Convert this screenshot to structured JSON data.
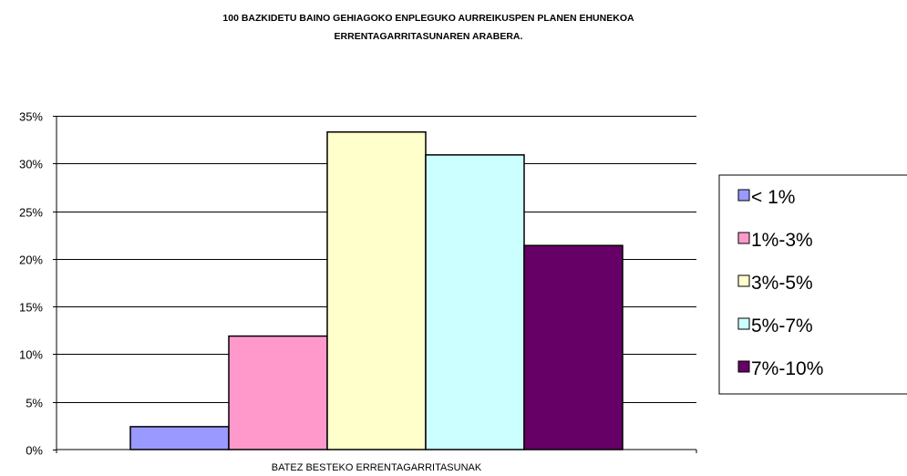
{
  "chart_data": {
    "type": "bar",
    "title": [
      "100 BAZKIDETU BAINO GEHIAGOKO ENPLEGUKO AURREIKUSPEN PLANEN EHUNEKOA",
      "ERRENTAGARRITASUNAREN ARABERA."
    ],
    "categories": [
      "BATEZ BESTEKO ERRENTAGARRITASUNAK"
    ],
    "series": [
      {
        "name": "< 1%",
        "values": [
          2.4
        ],
        "color": "#9999ff"
      },
      {
        "name": "1%-3%",
        "values": [
          11.9
        ],
        "color": "#ff99cc"
      },
      {
        "name": "3%-5%",
        "values": [
          33.3
        ],
        "color": "#ffffcc"
      },
      {
        "name": "5%-7%",
        "values": [
          30.9
        ],
        "color": "#ccffff"
      },
      {
        "name": "7%-10%",
        "values": [
          21.4
        ],
        "color": "#660066"
      }
    ],
    "ylim": [
      0,
      35
    ],
    "yticks": [
      "0%",
      "5%",
      "10%",
      "15%",
      "20%",
      "25%",
      "30%",
      "35%"
    ],
    "grid": true,
    "legend_position": "right"
  }
}
